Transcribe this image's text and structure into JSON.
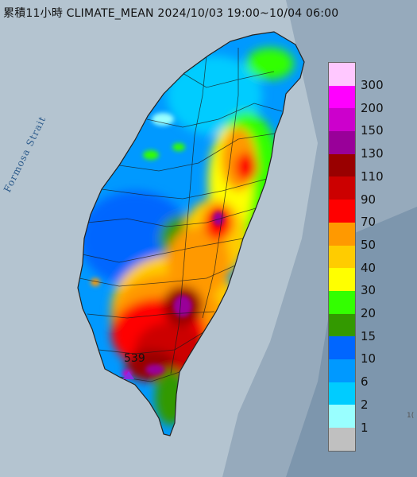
{
  "header": {
    "title": "累積11小時 CLIMATE_MEAN 2024/10/03 19:00~10/04 06:00"
  },
  "map": {
    "water_label": "Formosa Strait",
    "max_point_label": "539",
    "corner_label": "1("
  },
  "legend": {
    "levels": [
      {
        "label": "300",
        "color": "#ffc8ff"
      },
      {
        "label": "200",
        "color": "#ff00ff"
      },
      {
        "label": "150",
        "color": "#cc00cc"
      },
      {
        "label": "130",
        "color": "#990099"
      },
      {
        "label": "110",
        "color": "#990000"
      },
      {
        "label": "90",
        "color": "#cc0000"
      },
      {
        "label": "70",
        "color": "#ff0000"
      },
      {
        "label": "50",
        "color": "#ff9900"
      },
      {
        "label": "40",
        "color": "#ffcc00"
      },
      {
        "label": "30",
        "color": "#ffff00"
      },
      {
        "label": "20",
        "color": "#33ff00"
      },
      {
        "label": "15",
        "color": "#339900"
      },
      {
        "label": "10",
        "color": "#0066ff"
      },
      {
        "label": "6",
        "color": "#0099ff"
      },
      {
        "label": "2",
        "color": "#00ccff"
      },
      {
        "label": "1",
        "color": "#99ffff"
      },
      {
        "label": "",
        "color": "#c0c0c0"
      }
    ]
  }
}
